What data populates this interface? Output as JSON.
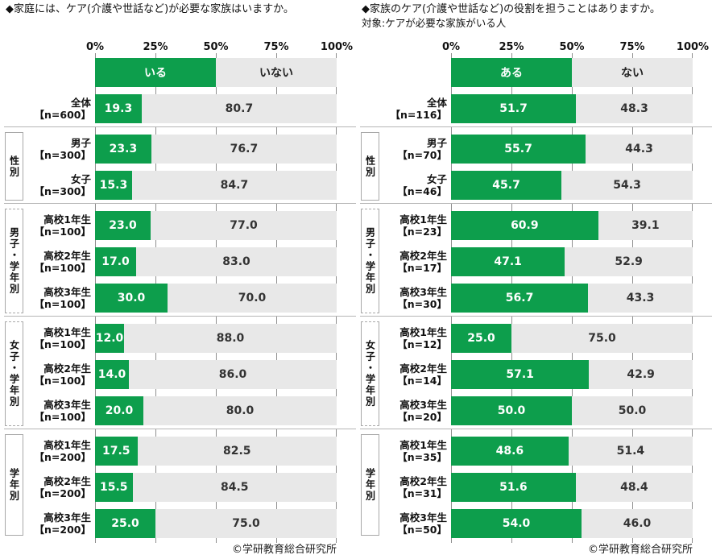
{
  "chart_data": [
    {
      "type": "bar",
      "orientation": "horizontal",
      "stacked": true,
      "title": "◆家庭には、ケア(介護や世話など)が必要な家族はいますか。",
      "subtitle": "",
      "legend": [
        "いる",
        "いない"
      ],
      "axis_ticks": [
        "0%",
        "25%",
        "50%",
        "75%",
        "100%"
      ],
      "xlim": [
        0,
        100
      ],
      "colors": {
        "yes": "#0d9e4c",
        "no": "#e8e8e8"
      },
      "footer": "©学研教育総合研究所",
      "groups": [
        {
          "label": "",
          "rows": [
            {
              "cat": "全体",
              "n": "【n=600】",
              "yes": 19.3,
              "no": 80.7
            }
          ]
        },
        {
          "label": "性別",
          "rows": [
            {
              "cat": "男子",
              "n": "【n=300】",
              "yes": 23.3,
              "no": 76.7
            },
            {
              "cat": "女子",
              "n": "【n=300】",
              "yes": 15.3,
              "no": 84.7
            }
          ]
        },
        {
          "label": "男子・学年別",
          "rows": [
            {
              "cat": "高校1年生",
              "n": "【n=100】",
              "yes": 23.0,
              "no": 77.0
            },
            {
              "cat": "高校2年生",
              "n": "【n=100】",
              "yes": 17.0,
              "no": 83.0
            },
            {
              "cat": "高校3年生",
              "n": "【n=100】",
              "yes": 30.0,
              "no": 70.0
            }
          ]
        },
        {
          "label": "女子・学年別",
          "rows": [
            {
              "cat": "高校1年生",
              "n": "【n=100】",
              "yes": 12.0,
              "no": 88.0
            },
            {
              "cat": "高校2年生",
              "n": "【n=100】",
              "yes": 14.0,
              "no": 86.0
            },
            {
              "cat": "高校3年生",
              "n": "【n=100】",
              "yes": 20.0,
              "no": 80.0
            }
          ]
        },
        {
          "label": "学年別",
          "rows": [
            {
              "cat": "高校1年生",
              "n": "【n=200】",
              "yes": 17.5,
              "no": 82.5
            },
            {
              "cat": "高校2年生",
              "n": "【n=200】",
              "yes": 15.5,
              "no": 84.5
            },
            {
              "cat": "高校3年生",
              "n": "【n=200】",
              "yes": 25.0,
              "no": 75.0
            }
          ]
        }
      ]
    },
    {
      "type": "bar",
      "orientation": "horizontal",
      "stacked": true,
      "title": "◆家族のケア(介護や世話など)の役割を担うことはありますか。",
      "subtitle": "対象:ケアが必要な家族がいる人",
      "legend": [
        "ある",
        "ない"
      ],
      "axis_ticks": [
        "0%",
        "25%",
        "50%",
        "75%",
        "100%"
      ],
      "xlim": [
        0,
        100
      ],
      "colors": {
        "yes": "#0d9e4c",
        "no": "#e8e8e8"
      },
      "footer": "©学研教育総合研究所",
      "groups": [
        {
          "label": "",
          "rows": [
            {
              "cat": "全体",
              "n": "【n=116】",
              "yes": 51.7,
              "no": 48.3
            }
          ]
        },
        {
          "label": "性別",
          "rows": [
            {
              "cat": "男子",
              "n": "【n=70】",
              "yes": 55.7,
              "no": 44.3
            },
            {
              "cat": "女子",
              "n": "【n=46】",
              "yes": 45.7,
              "no": 54.3
            }
          ]
        },
        {
          "label": "男子・学年別",
          "rows": [
            {
              "cat": "高校1年生",
              "n": "【n=23】",
              "yes": 60.9,
              "no": 39.1
            },
            {
              "cat": "高校2年生",
              "n": "【n=17】",
              "yes": 47.1,
              "no": 52.9
            },
            {
              "cat": "高校3年生",
              "n": "【n=30】",
              "yes": 56.7,
              "no": 43.3
            }
          ]
        },
        {
          "label": "女子・学年別",
          "rows": [
            {
              "cat": "高校1年生",
              "n": "【n=12】",
              "yes": 25.0,
              "no": 75.0
            },
            {
              "cat": "高校2年生",
              "n": "【n=14】",
              "yes": 57.1,
              "no": 42.9
            },
            {
              "cat": "高校3年生",
              "n": "【n=20】",
              "yes": 50.0,
              "no": 50.0
            }
          ]
        },
        {
          "label": "学年別",
          "rows": [
            {
              "cat": "高校1年生",
              "n": "【n=35】",
              "yes": 48.6,
              "no": 51.4
            },
            {
              "cat": "高校2年生",
              "n": "【n=31】",
              "yes": 51.6,
              "no": 48.4
            },
            {
              "cat": "高校3年生",
              "n": "【n=50】",
              "yes": 54.0,
              "no": 46.0
            }
          ]
        }
      ]
    }
  ]
}
